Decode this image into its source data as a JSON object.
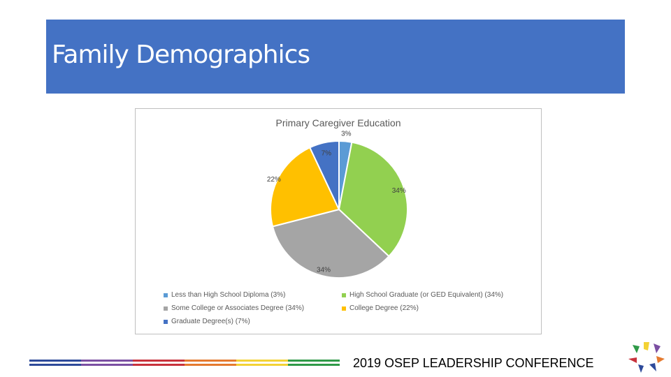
{
  "slide": {
    "title": "Family Demographics",
    "footer": "2019 OSEP LEADERSHIP CONFERENCE"
  },
  "colors": {
    "title_bar": "#4472c4",
    "stripe": [
      "#2e4a9a",
      "#7b4fa2",
      "#c8323c",
      "#e57a2f",
      "#f3d235",
      "#2f9a48"
    ]
  },
  "chart_data": {
    "type": "pie",
    "title": "Primary Caregiver Education",
    "slices": [
      {
        "name": "Less than High School Diploma (3%)",
        "value": 3,
        "label": "3%",
        "color": "#5b9bd5"
      },
      {
        "name": "High School Graduate (or GED Equivalent) (34%)",
        "value": 34,
        "label": "34%",
        "color": "#92d050"
      },
      {
        "name": "Some College or Associates Degree (34%)",
        "value": 34,
        "label": "34%",
        "color": "#a5a5a5"
      },
      {
        "name": "College Degree (22%)",
        "value": 22,
        "label": "22%",
        "color": "#ffc000"
      },
      {
        "name": "Graduate Degree(s) (7%)",
        "value": 7,
        "label": "7%",
        "color": "#4472c4"
      }
    ],
    "legend_position": "bottom"
  }
}
